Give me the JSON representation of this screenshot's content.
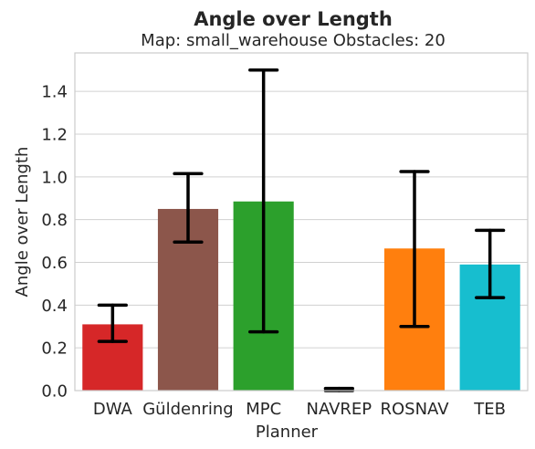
{
  "chart_data": {
    "type": "bar",
    "title": "Angle over Length",
    "subtitle": "Map: small_warehouse Obstacles: 20",
    "xlabel": "Planner",
    "ylabel": "Angle over Length",
    "ylim": [
      0,
      1.58
    ],
    "yticks": [
      "0.0",
      "0.2",
      "0.4",
      "0.6",
      "0.8",
      "1.0",
      "1.2",
      "1.4"
    ],
    "grid": true,
    "categories": [
      "DWA",
      "Güldenring",
      "MPC",
      "NAVREP",
      "ROSNAV",
      "TEB"
    ],
    "values": [
      0.31,
      0.85,
      0.885,
      0.0,
      0.665,
      0.59
    ],
    "error_low": [
      0.23,
      0.695,
      0.275,
      0.0,
      0.3,
      0.435
    ],
    "error_high": [
      0.4,
      1.015,
      1.5,
      0.01,
      1.025,
      0.75
    ],
    "colors": [
      "#d62728",
      "#8c564b",
      "#2ca02c",
      "#1f77b4",
      "#ff7f0e",
      "#17becf"
    ]
  }
}
